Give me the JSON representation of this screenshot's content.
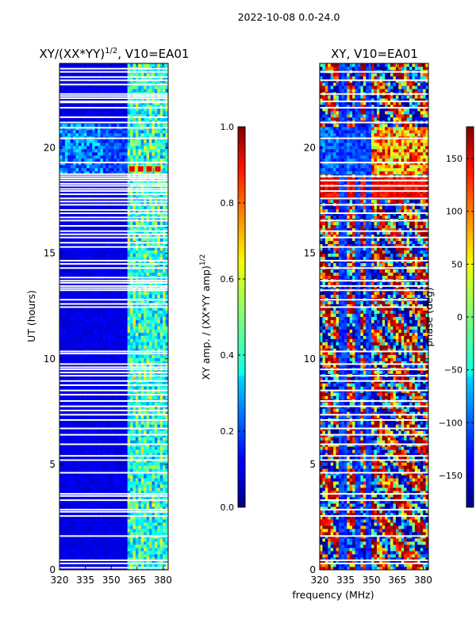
{
  "figure": {
    "suptitle": "2022-10-08 0.0-24.0",
    "xlabel_shared": "frequency (MHz)"
  },
  "chart_data": [
    {
      "type": "heatmap",
      "title_main": "XY/(XX*YY)",
      "title_exp": "1/2",
      "title_suffix": ", V10=EA01",
      "xlabel": "",
      "ylabel": "UT (hours)",
      "xlim": [
        320,
        383
      ],
      "ylim": [
        0,
        24
      ],
      "xticks": [
        320,
        335,
        350,
        365,
        380
      ],
      "yticks": [
        0,
        5,
        10,
        15,
        20
      ],
      "colorbar": {
        "label_main": "XY amp. / (XX*YY amp)",
        "label_exp": "1/2",
        "min": 0.0,
        "max": 1.0,
        "ticks": [
          0.0,
          0.2,
          0.4,
          0.6,
          0.8,
          1.0
        ],
        "tick_labels": [
          "0.0",
          "0.2",
          "0.4",
          "0.6",
          "0.8",
          "1.0"
        ],
        "colormap": "jet"
      },
      "flagged_times_hours": [
        0.1,
        0.3,
        0.45,
        1.6,
        2.55,
        2.75,
        2.85,
        3.3,
        3.5,
        3.6,
        4.6,
        5.2,
        5.4,
        5.95,
        6.4,
        6.7,
        7.1,
        7.35,
        7.55,
        7.75,
        8.0,
        8.3,
        8.5,
        8.75,
        8.95,
        9.2,
        9.35,
        9.5,
        9.6,
        9.75,
        10.25,
        10.35,
        12.45,
        12.6,
        12.8,
        13.25,
        13.35,
        13.45,
        13.6,
        13.7,
        13.85,
        14.3,
        14.5,
        14.65,
        15.3,
        15.5,
        15.75,
        15.9,
        16.05,
        16.3,
        16.55,
        16.7,
        16.9,
        17.05,
        17.3,
        17.45,
        17.6,
        17.8,
        17.95,
        18.05,
        18.2,
        18.3,
        18.45,
        18.55,
        18.65,
        18.75,
        19.3,
        20.45,
        20.95,
        21.2,
        21.45,
        21.9,
        22.15,
        22.2,
        22.35,
        22.45,
        22.55,
        23.0,
        23.2,
        23.35,
        23.6,
        23.75
      ],
      "high_coherence_band_mhz": [
        360,
        383
      ],
      "rfi_spikes": [
        {
          "time_hours": 19.0,
          "freqs_mhz": [
            362,
            367,
            372,
            377
          ],
          "value": 0.9
        }
      ]
    },
    {
      "type": "heatmap",
      "title_main": "XY, V10=EA01",
      "xlabel": "frequency (MHz)",
      "ylabel": "",
      "xlim": [
        320,
        383
      ],
      "ylim": [
        0,
        24
      ],
      "xticks": [
        320,
        335,
        350,
        365,
        380
      ],
      "yticks": [
        0,
        5,
        10,
        15,
        20
      ],
      "colorbar": {
        "label_main": "phase (deg)",
        "min": -180,
        "max": 180,
        "ticks": [
          -150,
          -100,
          -50,
          0,
          50,
          100,
          150
        ],
        "tick_labels": [
          "−150",
          "−100",
          "−50",
          "0",
          "50",
          "100",
          "150"
        ],
        "colormap": "jet"
      },
      "flagged_times_hours": [
        0.3,
        0.45,
        1.6,
        2.55,
        2.85,
        3.3,
        3.6,
        4.6,
        5.2,
        5.4,
        5.95,
        6.4,
        6.7,
        7.1,
        7.35,
        7.75,
        8.0,
        8.5,
        8.95,
        9.2,
        9.5,
        9.75,
        10.35,
        12.45,
        12.8,
        13.25,
        13.45,
        13.7,
        14.3,
        14.65,
        15.3,
        15.75,
        16.05,
        16.55,
        16.9,
        17.3,
        17.6,
        17.95,
        18.2,
        18.45,
        18.65,
        19.3,
        20.45,
        21.2,
        21.9,
        22.2,
        22.55,
        23.2,
        23.6
      ],
      "phase_bands_mhz": [
        [
          331,
          335
        ],
        [
          341,
          344
        ],
        [
          347,
          350
        ]
      ]
    }
  ]
}
